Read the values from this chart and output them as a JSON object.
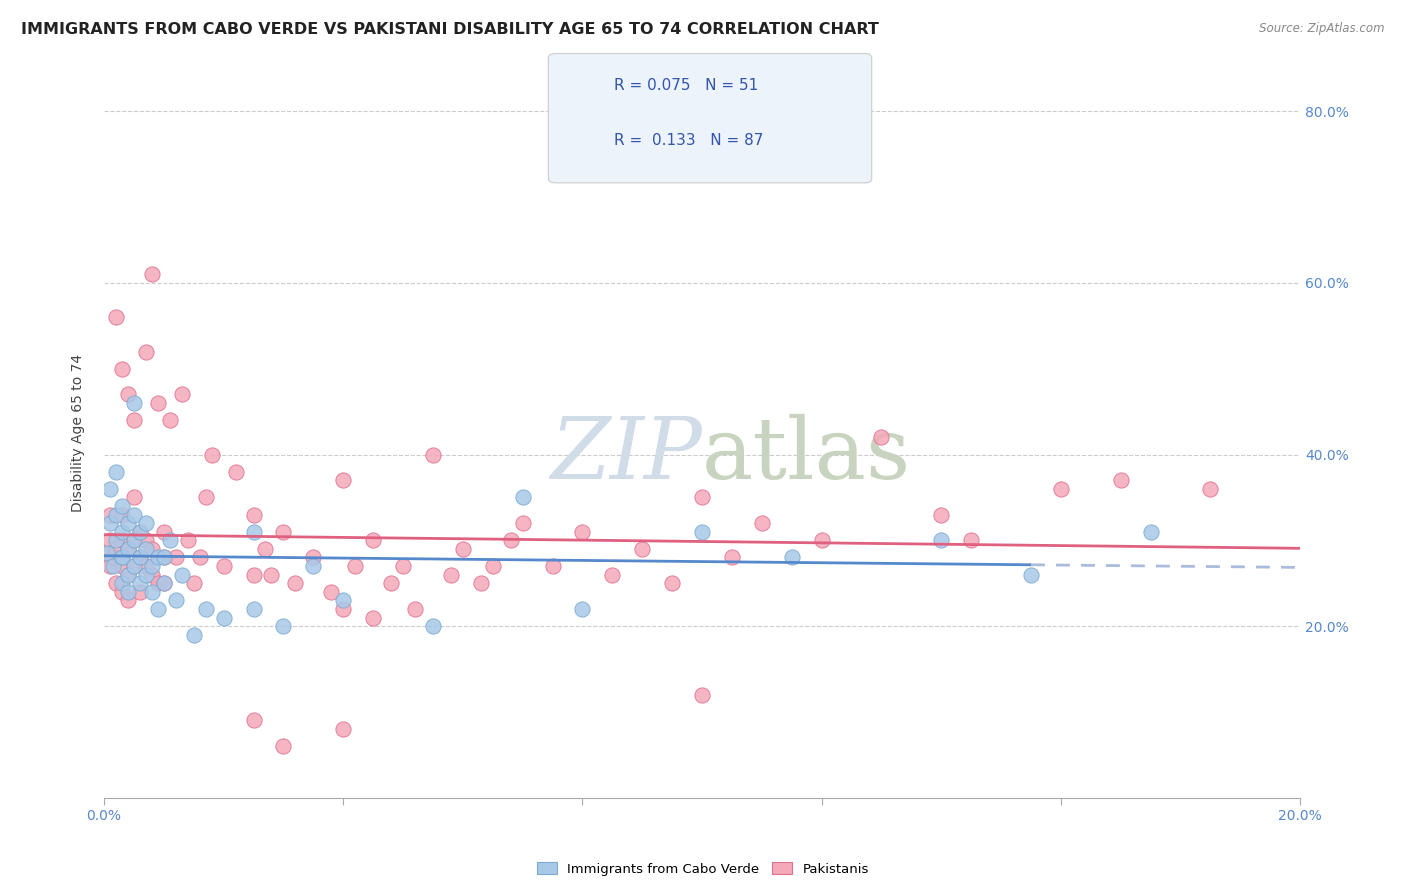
{
  "title": "IMMIGRANTS FROM CABO VERDE VS PAKISTANI DISABILITY AGE 65 TO 74 CORRELATION CHART",
  "source_text": "Source: ZipAtlas.com",
  "ylabel": "Disability Age 65 to 74",
  "cabo_verde_R": 0.075,
  "cabo_verde_N": 51,
  "pakistani_R": 0.133,
  "pakistani_N": 87,
  "cabo_verde_color": "#a8c8e8",
  "pakistani_color": "#f4a8b8",
  "cabo_verde_edge_color": "#7aaad0",
  "pakistani_edge_color": "#e07090",
  "cabo_verde_line_color": "#5588cc",
  "pakistani_line_color": "#e06080",
  "trend_line_dashed_color": "#aabbdd",
  "watermark_color": "#d0dce8",
  "background_color": "#ffffff",
  "xlim": [
    0.0,
    0.2
  ],
  "ylim": [
    0.0,
    0.85
  ],
  "y_ticks_right": [
    0.0,
    0.2,
    0.4,
    0.6,
    0.8
  ],
  "y_tick_labels_right": [
    "",
    "20.0%",
    "40.0%",
    "60.0%",
    "80.0%"
  ],
  "grid_color": "#cccccc",
  "title_fontsize": 11.5,
  "axis_label_fontsize": 10,
  "tick_fontsize": 10,
  "legend_fontsize": 11,
  "cabo_verde_x": [
    0.0005,
    0.001,
    0.001,
    0.0015,
    0.002,
    0.002,
    0.002,
    0.003,
    0.003,
    0.003,
    0.003,
    0.003,
    0.004,
    0.004,
    0.004,
    0.004,
    0.005,
    0.005,
    0.005,
    0.005,
    0.006,
    0.006,
    0.006,
    0.007,
    0.007,
    0.007,
    0.008,
    0.008,
    0.009,
    0.009,
    0.01,
    0.01,
    0.011,
    0.012,
    0.013,
    0.015,
    0.017,
    0.02,
    0.025,
    0.025,
    0.03,
    0.035,
    0.04,
    0.055,
    0.07,
    0.08,
    0.1,
    0.115,
    0.14,
    0.155,
    0.175
  ],
  "cabo_verde_y": [
    0.285,
    0.32,
    0.36,
    0.27,
    0.3,
    0.33,
    0.38,
    0.25,
    0.28,
    0.31,
    0.34,
    0.28,
    0.26,
    0.29,
    0.32,
    0.24,
    0.27,
    0.3,
    0.33,
    0.46,
    0.28,
    0.31,
    0.25,
    0.26,
    0.29,
    0.32,
    0.27,
    0.24,
    0.28,
    0.22,
    0.25,
    0.28,
    0.3,
    0.23,
    0.26,
    0.19,
    0.22,
    0.21,
    0.22,
    0.31,
    0.2,
    0.27,
    0.23,
    0.2,
    0.35,
    0.22,
    0.31,
    0.28,
    0.3,
    0.26,
    0.31
  ],
  "pakistani_x": [
    0.0005,
    0.001,
    0.001,
    0.001,
    0.0015,
    0.002,
    0.002,
    0.002,
    0.003,
    0.003,
    0.003,
    0.003,
    0.003,
    0.004,
    0.004,
    0.004,
    0.004,
    0.005,
    0.005,
    0.005,
    0.005,
    0.006,
    0.006,
    0.006,
    0.007,
    0.007,
    0.007,
    0.008,
    0.008,
    0.008,
    0.009,
    0.009,
    0.01,
    0.01,
    0.01,
    0.011,
    0.012,
    0.013,
    0.014,
    0.015,
    0.016,
    0.017,
    0.018,
    0.02,
    0.022,
    0.025,
    0.025,
    0.027,
    0.028,
    0.03,
    0.032,
    0.035,
    0.038,
    0.04,
    0.042,
    0.045,
    0.048,
    0.05,
    0.052,
    0.055,
    0.058,
    0.06,
    0.063,
    0.065,
    0.068,
    0.07,
    0.075,
    0.08,
    0.085,
    0.09,
    0.095,
    0.1,
    0.105,
    0.11,
    0.12,
    0.13,
    0.14,
    0.145,
    0.16,
    0.17,
    0.185,
    0.04,
    0.03,
    0.025,
    0.04,
    0.045,
    0.1
  ],
  "pakistani_y": [
    0.285,
    0.27,
    0.3,
    0.33,
    0.28,
    0.25,
    0.29,
    0.56,
    0.24,
    0.27,
    0.3,
    0.5,
    0.33,
    0.26,
    0.29,
    0.47,
    0.23,
    0.27,
    0.3,
    0.44,
    0.35,
    0.28,
    0.31,
    0.24,
    0.27,
    0.3,
    0.52,
    0.26,
    0.29,
    0.61,
    0.25,
    0.46,
    0.28,
    0.31,
    0.25,
    0.44,
    0.28,
    0.47,
    0.3,
    0.25,
    0.28,
    0.35,
    0.4,
    0.27,
    0.38,
    0.26,
    0.33,
    0.29,
    0.26,
    0.31,
    0.25,
    0.28,
    0.24,
    0.37,
    0.27,
    0.3,
    0.25,
    0.27,
    0.22,
    0.4,
    0.26,
    0.29,
    0.25,
    0.27,
    0.3,
    0.32,
    0.27,
    0.31,
    0.26,
    0.29,
    0.25,
    0.35,
    0.28,
    0.32,
    0.3,
    0.42,
    0.33,
    0.3,
    0.36,
    0.37,
    0.36,
    0.08,
    0.06,
    0.09,
    0.22,
    0.21,
    0.12
  ]
}
